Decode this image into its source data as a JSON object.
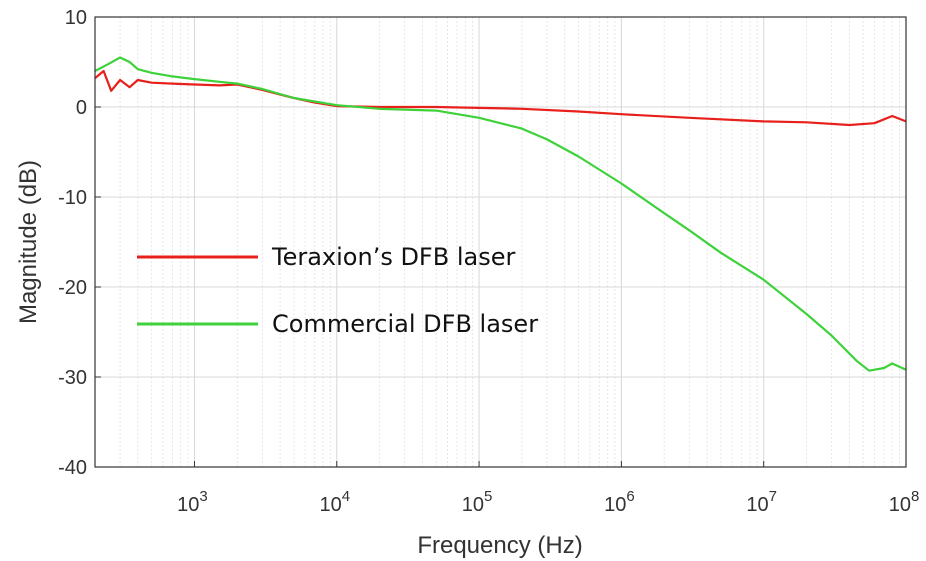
{
  "chart_data": {
    "type": "line",
    "xlabel": "Frequency (Hz)",
    "ylabel": "Magnitude (dB)",
    "x_scale": "log",
    "xlim": [
      200,
      100000000
    ],
    "ylim": [
      -40,
      10
    ],
    "grid": true,
    "legend_position": "center-left",
    "x_ticks": [
      {
        "value": 1000,
        "base": "10",
        "exp": "3"
      },
      {
        "value": 10000,
        "base": "10",
        "exp": "4"
      },
      {
        "value": 100000,
        "base": "10",
        "exp": "5"
      },
      {
        "value": 1000000,
        "base": "10",
        "exp": "6"
      },
      {
        "value": 10000000,
        "base": "10",
        "exp": "7"
      },
      {
        "value": 100000000,
        "base": "10",
        "exp": "8"
      }
    ],
    "y_ticks": [
      10,
      0,
      -10,
      -20,
      -30,
      -40
    ],
    "series": [
      {
        "name": "Teraxion’s DFB laser",
        "color": "#e8201c",
        "points": [
          [
            200,
            3.2
          ],
          [
            230,
            4.0
          ],
          [
            260,
            1.8
          ],
          [
            300,
            3.0
          ],
          [
            350,
            2.2
          ],
          [
            400,
            3.0
          ],
          [
            500,
            2.7
          ],
          [
            700,
            2.6
          ],
          [
            1000,
            2.5
          ],
          [
            1500,
            2.4
          ],
          [
            2000,
            2.5
          ],
          [
            3000,
            1.9
          ],
          [
            5000,
            1.0
          ],
          [
            7000,
            0.5
          ],
          [
            10000,
            0.1
          ],
          [
            20000,
            0.0
          ],
          [
            50000,
            0.0
          ],
          [
            100000,
            -0.1
          ],
          [
            200000,
            -0.2
          ],
          [
            500000,
            -0.5
          ],
          [
            1000000,
            -0.8
          ],
          [
            3000000,
            -1.2
          ],
          [
            10000000,
            -1.6
          ],
          [
            20000000,
            -1.7
          ],
          [
            40000000,
            -2.0
          ],
          [
            60000000,
            -1.8
          ],
          [
            80000000,
            -1.0
          ],
          [
            100000000,
            -1.6
          ]
        ]
      },
      {
        "name": "Commercial DFB laser",
        "color": "#3ed23a",
        "points": [
          [
            200,
            4.0
          ],
          [
            250,
            4.8
          ],
          [
            300,
            5.5
          ],
          [
            350,
            5.0
          ],
          [
            400,
            4.2
          ],
          [
            500,
            3.8
          ],
          [
            700,
            3.4
          ],
          [
            1000,
            3.1
          ],
          [
            1500,
            2.8
          ],
          [
            2000,
            2.6
          ],
          [
            3000,
            2.0
          ],
          [
            5000,
            1.0
          ],
          [
            10000,
            0.2
          ],
          [
            20000,
            -0.2
          ],
          [
            50000,
            -0.4
          ],
          [
            100000,
            -1.2
          ],
          [
            200000,
            -2.4
          ],
          [
            300000,
            -3.6
          ],
          [
            500000,
            -5.5
          ],
          [
            1000000,
            -8.5
          ],
          [
            2000000,
            -11.8
          ],
          [
            3000000,
            -13.7
          ],
          [
            5000000,
            -16.2
          ],
          [
            10000000,
            -19.2
          ],
          [
            20000000,
            -23.0
          ],
          [
            30000000,
            -25.4
          ],
          [
            45000000,
            -28.2
          ],
          [
            55000000,
            -29.3
          ],
          [
            70000000,
            -29.0
          ],
          [
            80000000,
            -28.5
          ],
          [
            100000000,
            -29.2
          ]
        ]
      }
    ]
  }
}
